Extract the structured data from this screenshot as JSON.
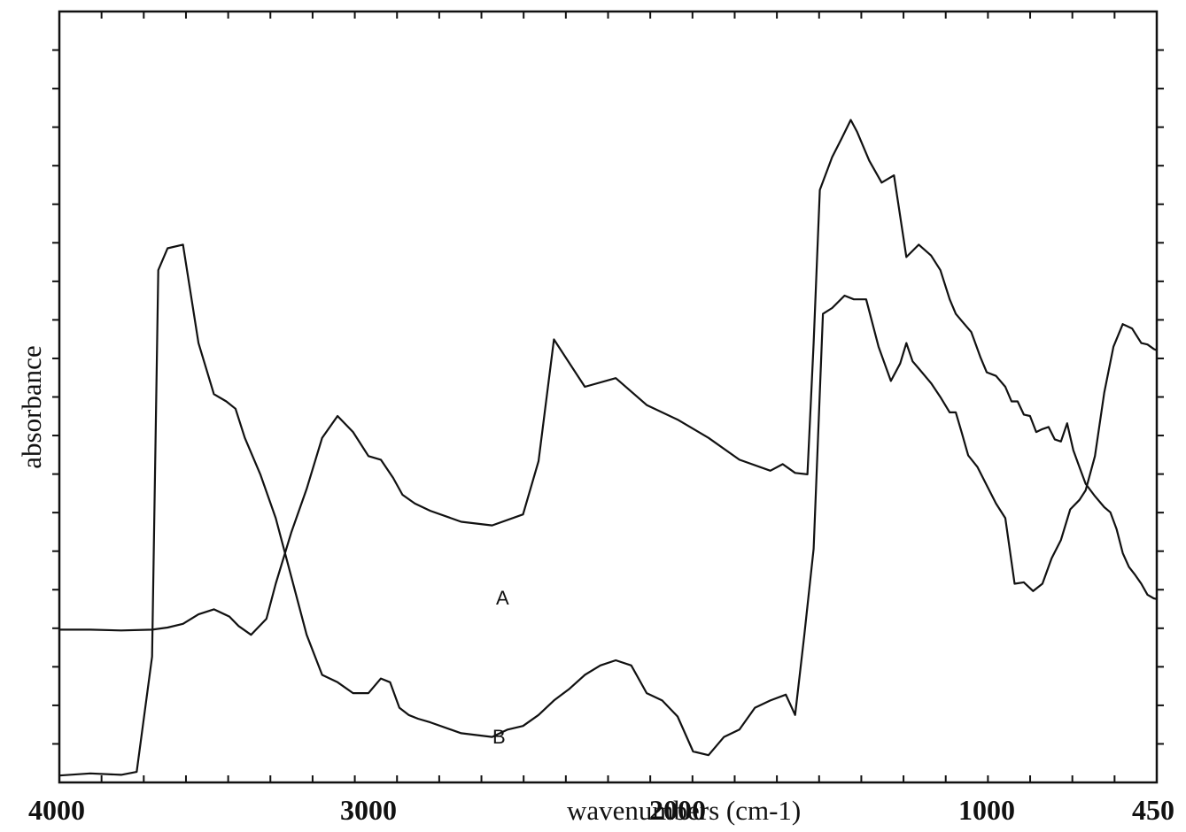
{
  "chart_data": {
    "type": "line",
    "xlabel": "wavenumbers (cm-1)",
    "ylabel": "absorbance",
    "x_reversed": true,
    "xlim": [
      4000,
      450
    ],
    "ylim": [
      0,
      1
    ],
    "x_ticks": [
      {
        "value": 4000,
        "label": "4000"
      },
      {
        "value": 3000,
        "label": "3000"
      },
      {
        "value": 2000,
        "label": "2000"
      },
      {
        "value": 1000,
        "label": "1000"
      },
      {
        "value": 450,
        "label": "450"
      }
    ],
    "y_tick_labels_shown": false,
    "grid": false,
    "series": [
      {
        "name": "A",
        "x": [
          4000,
          3900,
          3800,
          3700,
          3650,
          3600,
          3550,
          3500,
          3450,
          3420,
          3380,
          3330,
          3300,
          3250,
          3200,
          3150,
          3100,
          3050,
          3000,
          2960,
          2920,
          2890,
          2850,
          2800,
          2700,
          2600,
          2500,
          2450,
          2400,
          2300,
          2200,
          2100,
          2000,
          1900,
          1800,
          1700,
          1660,
          1620,
          1580,
          1560,
          1540,
          1500,
          1470,
          1440,
          1420,
          1380,
          1340,
          1300,
          1260,
          1220,
          1180,
          1150,
          1120,
          1100,
          1080,
          1050,
          1020,
          1000,
          970,
          940,
          920,
          900,
          880,
          860,
          840,
          820,
          800,
          780,
          760,
          740,
          720,
          700,
          680,
          650,
          620,
          600,
          580,
          560,
          540,
          520,
          500,
          480,
          460,
          450
        ],
        "y": [
          0.207,
          0.207,
          0.206,
          0.207,
          0.21,
          0.215,
          0.228,
          0.235,
          0.225,
          0.212,
          0.2,
          0.222,
          0.27,
          0.34,
          0.4,
          0.47,
          0.5,
          0.478,
          0.445,
          0.44,
          0.415,
          0.392,
          0.38,
          0.37,
          0.355,
          0.35,
          0.365,
          0.438,
          0.605,
          0.54,
          0.552,
          0.515,
          0.495,
          0.47,
          0.44,
          0.425,
          0.434,
          0.422,
          0.42,
          0.6,
          0.81,
          0.855,
          0.88,
          0.906,
          0.89,
          0.85,
          0.82,
          0.83,
          0.718,
          0.735,
          0.72,
          0.7,
          0.66,
          0.64,
          0.63,
          0.615,
          0.58,
          0.56,
          0.555,
          0.54,
          0.52,
          0.52,
          0.502,
          0.5,
          0.478,
          0.482,
          0.485,
          0.468,
          0.465,
          0.49,
          0.453,
          0.43,
          0.407,
          0.39,
          0.375,
          0.368,
          0.345,
          0.312,
          0.293,
          0.282,
          0.27,
          0.255,
          0.25,
          0.249
        ]
      },
      {
        "name": "B",
        "x": [
          4000,
          3900,
          3800,
          3750,
          3700,
          3680,
          3650,
          3600,
          3550,
          3500,
          3460,
          3430,
          3400,
          3350,
          3300,
          3250,
          3200,
          3150,
          3100,
          3050,
          3000,
          2960,
          2930,
          2900,
          2870,
          2840,
          2800,
          2700,
          2600,
          2550,
          2500,
          2450,
          2400,
          2350,
          2300,
          2250,
          2200,
          2150,
          2100,
          2050,
          2000,
          1950,
          1900,
          1850,
          1800,
          1750,
          1700,
          1650,
          1620,
          1590,
          1560,
          1530,
          1500,
          1460,
          1430,
          1390,
          1350,
          1310,
          1280,
          1260,
          1240,
          1220,
          1180,
          1150,
          1120,
          1100,
          1080,
          1060,
          1030,
          1000,
          970,
          940,
          910,
          880,
          850,
          820,
          790,
          760,
          730,
          700,
          680,
          650,
          620,
          590,
          560,
          530,
          500,
          480,
          460,
          450
        ],
        "y": [
          0.007,
          0.01,
          0.008,
          0.012,
          0.17,
          0.7,
          0.73,
          0.735,
          0.6,
          0.53,
          0.52,
          0.51,
          0.47,
          0.42,
          0.36,
          0.28,
          0.2,
          0.145,
          0.135,
          0.12,
          0.12,
          0.14,
          0.135,
          0.1,
          0.09,
          0.085,
          0.08,
          0.065,
          0.06,
          0.07,
          0.075,
          0.09,
          0.11,
          0.126,
          0.145,
          0.158,
          0.165,
          0.158,
          0.12,
          0.11,
          0.088,
          0.04,
          0.035,
          0.06,
          0.07,
          0.1,
          0.11,
          0.118,
          0.09,
          0.2,
          0.318,
          0.64,
          0.648,
          0.665,
          0.66,
          0.66,
          0.595,
          0.548,
          0.572,
          0.6,
          0.575,
          0.565,
          0.545,
          0.526,
          0.505,
          0.505,
          0.476,
          0.446,
          0.43,
          0.405,
          0.38,
          0.36,
          0.27,
          0.272,
          0.26,
          0.27,
          0.305,
          0.33,
          0.372,
          0.385,
          0.398,
          0.445,
          0.532,
          0.595,
          0.626,
          0.62,
          0.6,
          0.598,
          0.592,
          0.59
        ]
      }
    ],
    "annotations": [
      {
        "text": "A",
        "x": 2050,
        "y": 0.41
      },
      {
        "text": "B",
        "x": 2050,
        "y": 0.05
      }
    ]
  },
  "chart_curves_note": ""
}
